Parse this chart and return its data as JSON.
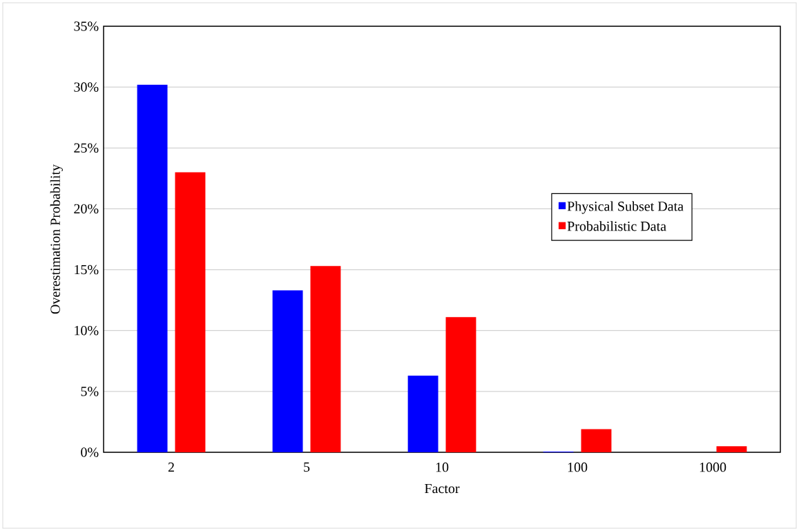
{
  "chart_data": {
    "type": "bar",
    "xlabel": "Factor",
    "ylabel": "Overestimation Probability",
    "categories": [
      "2",
      "5",
      "10",
      "100",
      "1000"
    ],
    "series": [
      {
        "name": "Physical Subset Data",
        "color": "#0000ff",
        "values": [
          30.2,
          13.3,
          6.3,
          0.05,
          0
        ]
      },
      {
        "name": "Probabilistic Data",
        "color": "#ff0000",
        "values": [
          23.0,
          15.3,
          11.1,
          1.9,
          0.5
        ]
      }
    ],
    "ylim": [
      0,
      35
    ],
    "yticks": [
      {
        "value": 0,
        "label": "0%"
      },
      {
        "value": 5,
        "label": "5%"
      },
      {
        "value": 10,
        "label": "10%"
      },
      {
        "value": 15,
        "label": "15%"
      },
      {
        "value": 20,
        "label": "20%"
      },
      {
        "value": 25,
        "label": "25%"
      },
      {
        "value": 30,
        "label": "30%"
      },
      {
        "value": 35,
        "label": "35%"
      }
    ],
    "grid": "y",
    "legend": "right"
  }
}
